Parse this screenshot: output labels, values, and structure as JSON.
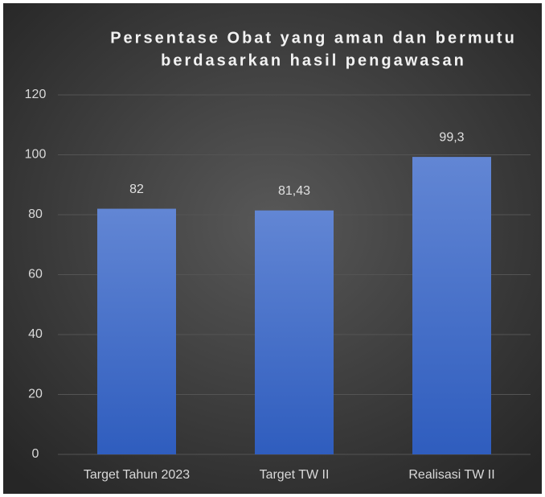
{
  "chart_data": {
    "type": "bar",
    "title": [
      "Persentase Obat yang aman dan bermutu",
      "berdasarkan hasil pengawasan"
    ],
    "categories": [
      "Target Tahun 2023",
      "Target TW II",
      "Realisasi TW II"
    ],
    "values": [
      82,
      81.43,
      99.3
    ],
    "value_labels": [
      "82",
      "81,43",
      "99,3"
    ],
    "color": "#4a72cc",
    "ylim": [
      0,
      120
    ],
    "yticks": [
      0,
      20,
      40,
      60,
      80,
      100,
      120
    ],
    "grid": true
  }
}
